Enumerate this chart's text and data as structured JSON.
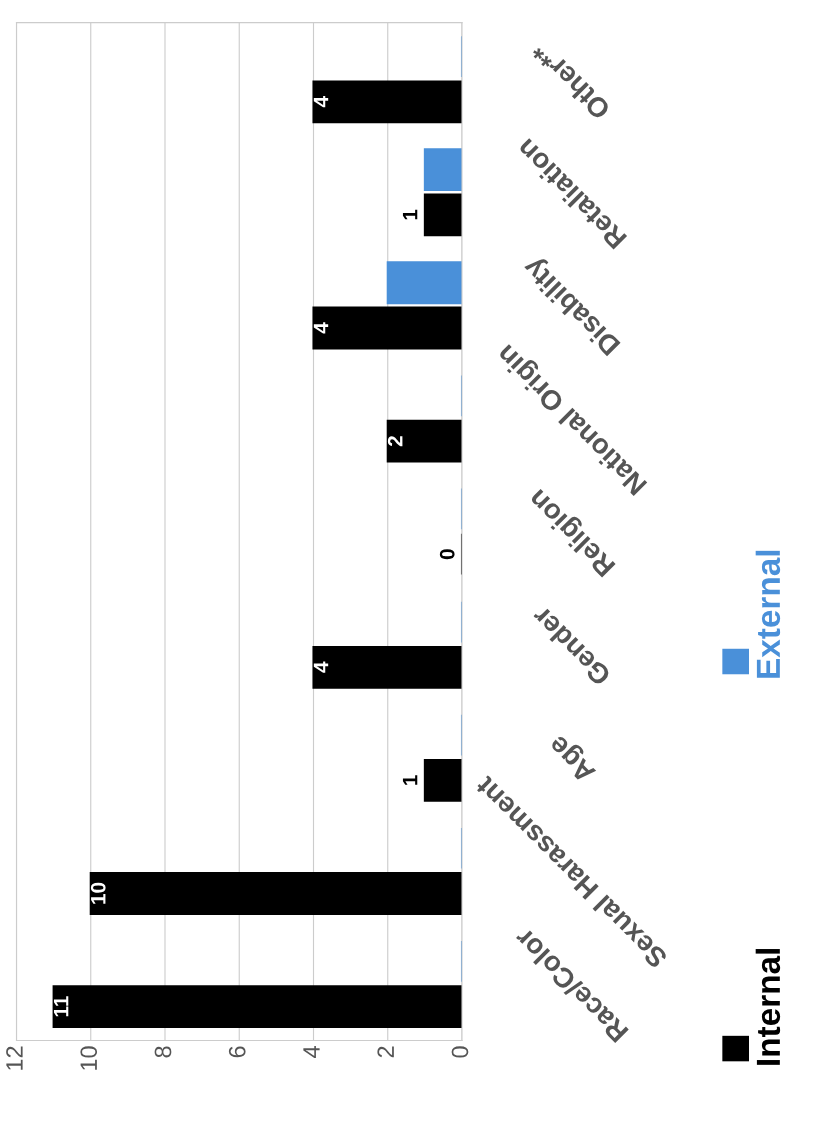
{
  "chart_data": {
    "type": "bar",
    "orientation": "horizontal",
    "categories": [
      "Other**",
      "Retaliation",
      "Disability",
      "National Origin",
      "Religion",
      "Gender",
      "Age",
      "Sexual Harassment",
      "Race/Color"
    ],
    "series": [
      {
        "name": "External",
        "color": "#4a90d9",
        "values": [
          0,
          1,
          2,
          0,
          0,
          0,
          0,
          0,
          0
        ]
      },
      {
        "name": "Internal",
        "color": "#000000",
        "values": [
          4,
          1,
          4,
          2,
          0,
          4,
          1,
          10,
          11
        ],
        "value_labels": [
          "4",
          "1",
          "4",
          "2",
          "0",
          "4",
          "1",
          "10",
          "11"
        ]
      }
    ],
    "xlim": [
      12,
      0
    ],
    "xticks": [
      0,
      2,
      4,
      6,
      8,
      10,
      12
    ],
    "grid": "x",
    "legend": "right"
  }
}
